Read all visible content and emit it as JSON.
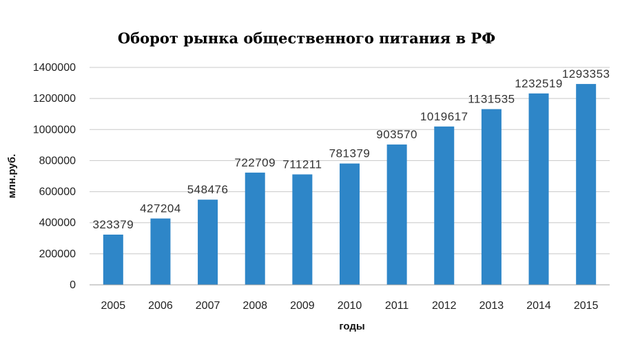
{
  "chart_data": {
    "type": "bar",
    "title": "Оборот  рынка  общественного   питания  в РФ",
    "xlabel": "годы",
    "ylabel": "млн.руб.",
    "categories": [
      "2005",
      "2006",
      "2007",
      "2008",
      "2009",
      "2010",
      "2011",
      "2012",
      "2013",
      "2014",
      "2015"
    ],
    "values": [
      323379,
      427204,
      548476,
      722709,
      711211,
      781379,
      903570,
      1019617,
      1131535,
      1232519,
      1293353
    ],
    "ylim": [
      0,
      1400000
    ],
    "yticks": [
      0,
      200000,
      400000,
      600000,
      800000,
      1000000,
      1200000,
      1400000
    ],
    "grid": true,
    "bar_color": "#2e86c8",
    "grid_color": "#c8c8c8"
  }
}
